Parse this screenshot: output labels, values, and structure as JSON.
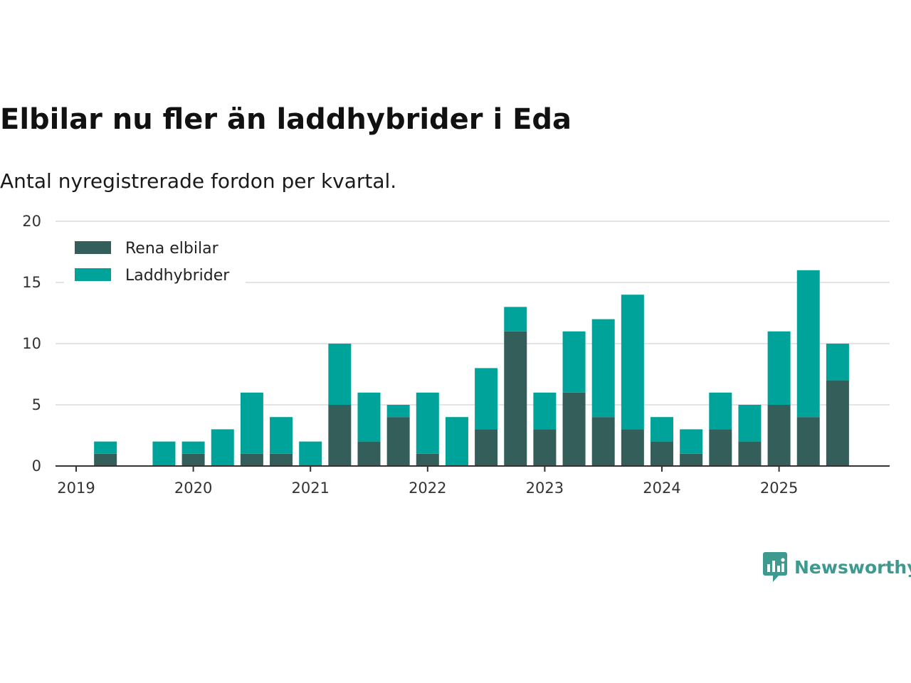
{
  "chart_data": {
    "type": "bar",
    "stacked": true,
    "title": "Elbilar nu fler än laddhybrider i Eda",
    "subtitle": "Antal nyregistrerade fordon per kvartal.",
    "xlabel": "",
    "ylabel": "",
    "ylim": [
      0,
      20
    ],
    "yticks": [
      "0",
      "5",
      "10",
      "15",
      "20"
    ],
    "xticks": [
      "2019",
      "2020",
      "2021",
      "2022",
      "2023",
      "2024",
      "2025"
    ],
    "grid": true,
    "legend_position": "top-left",
    "categories": [
      "2019 Q1",
      "2019 Q2",
      "2019 Q3",
      "2019 Q4",
      "2020 Q1",
      "2020 Q2",
      "2020 Q3",
      "2020 Q4",
      "2021 Q1",
      "2021 Q2",
      "2021 Q3",
      "2021 Q4",
      "2022 Q1",
      "2022 Q2",
      "2022 Q3",
      "2022 Q4",
      "2023 Q1",
      "2023 Q2",
      "2023 Q3",
      "2023 Q4",
      "2024 Q1",
      "2024 Q2",
      "2024 Q3",
      "2024 Q4",
      "2025 Q1",
      "2025 Q2",
      "2025 Q3"
    ],
    "series": [
      {
        "name": "Rena elbilar",
        "color": "#335e5a",
        "values": [
          0,
          1,
          0,
          0,
          1,
          0,
          1,
          1,
          0,
          5,
          2,
          4,
          1,
          0,
          3,
          11,
          3,
          6,
          4,
          3,
          2,
          1,
          3,
          2,
          5,
          4,
          7
        ]
      },
      {
        "name": "Laddhybrider",
        "color": "#00a39a",
        "values": [
          0,
          1,
          0,
          2,
          1,
          3,
          5,
          3,
          2,
          5,
          4,
          1,
          5,
          4,
          5,
          2,
          3,
          5,
          8,
          11,
          2,
          2,
          3,
          3,
          6,
          12,
          3
        ]
      }
    ]
  },
  "branding": {
    "name": "Newsworthy",
    "color": "#3e9a8f",
    "icon": "bar-chart-bubble-icon"
  }
}
